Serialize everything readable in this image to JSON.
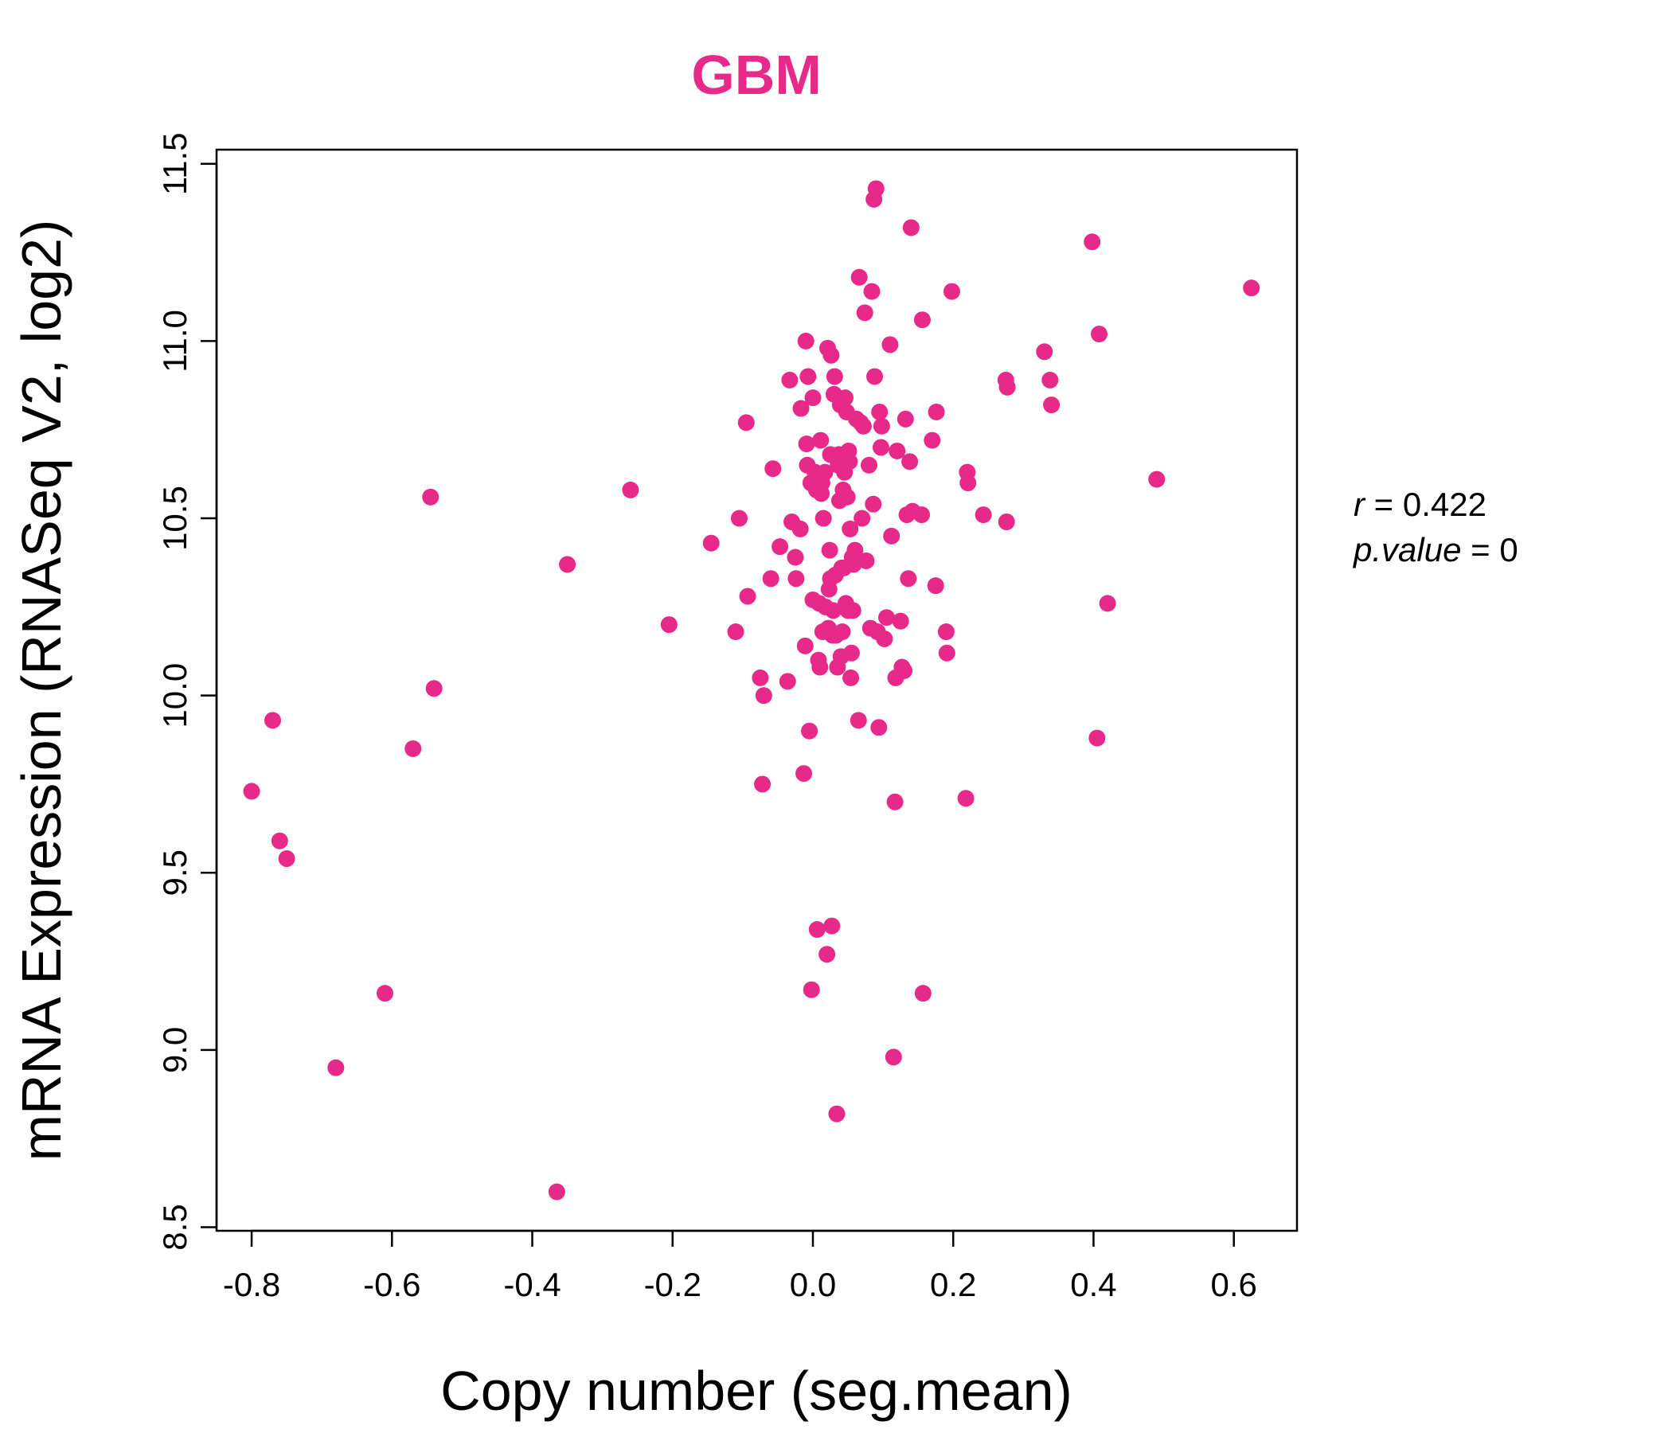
{
  "chart_data": {
    "type": "scatter",
    "title": "GBM",
    "xlabel": "Copy number (seg.mean)",
    "ylabel": "mRNA Expression (RNASeq V2, log2)",
    "xlim": [
      -0.85,
      0.69
    ],
    "ylim": [
      8.49,
      11.54
    ],
    "xticks": [
      -0.8,
      -0.6,
      -0.4,
      -0.2,
      0.0,
      0.2,
      0.4,
      0.6
    ],
    "xtick_labels": [
      "-0.8",
      "-0.6",
      "-0.4",
      "-0.2",
      "0.0",
      "0.2",
      "0.4",
      "0.6"
    ],
    "yticks": [
      8.5,
      9.0,
      9.5,
      10.0,
      10.5,
      11.0,
      11.5
    ],
    "ytick_labels": [
      "8.5",
      "9.0",
      "9.5",
      "10.0",
      "10.5",
      "11.0",
      "11.5"
    ],
    "grid": false,
    "legend": "none",
    "point_color": "#E7298A",
    "title_color": "#E7298A",
    "annotation": {
      "r_label": "r",
      "r_value": "0.422",
      "p_label": "p.value",
      "p_value": "0"
    },
    "points": [
      [
        -0.8,
        9.73
      ],
      [
        -0.77,
        9.93
      ],
      [
        -0.76,
        9.59
      ],
      [
        -0.75,
        9.54
      ],
      [
        -0.68,
        8.95
      ],
      [
        -0.61,
        9.16
      ],
      [
        -0.57,
        9.85
      ],
      [
        -0.545,
        10.56
      ],
      [
        -0.54,
        10.02
      ],
      [
        -0.35,
        10.37
      ],
      [
        -0.365,
        8.6
      ],
      [
        -0.26,
        10.58
      ],
      [
        -0.205,
        10.2
      ],
      [
        -0.145,
        10.43
      ],
      [
        -0.11,
        10.18
      ],
      [
        -0.105,
        10.5
      ],
      [
        -0.095,
        10.77
      ],
      [
        -0.093,
        10.28
      ],
      [
        -0.075,
        10.05
      ],
      [
        -0.07,
        10.0
      ],
      [
        -0.072,
        9.75
      ],
      [
        -0.06,
        10.33
      ],
      [
        -0.057,
        10.64
      ],
      [
        -0.047,
        10.42
      ],
      [
        -0.036,
        10.04
      ],
      [
        -0.033,
        10.89
      ],
      [
        -0.03,
        10.49
      ],
      [
        -0.025,
        10.39
      ],
      [
        -0.024,
        10.33
      ],
      [
        -0.018,
        10.47
      ],
      [
        -0.017,
        10.81
      ],
      [
        -0.013,
        9.78
      ],
      [
        -0.011,
        10.14
      ],
      [
        -0.01,
        11.0
      ],
      [
        -0.009,
        10.71
      ],
      [
        -0.008,
        10.65
      ],
      [
        -0.007,
        10.9
      ],
      [
        -0.005,
        9.9
      ],
      [
        -0.003,
        10.6
      ],
      [
        0.0,
        10.84
      ],
      [
        -0.002,
        9.17
      ],
      [
        0.0,
        10.27
      ],
      [
        0.003,
        10.63
      ],
      [
        0.005,
        10.58
      ],
      [
        0.006,
        9.34
      ],
      [
        0.008,
        10.1
      ],
      [
        0.009,
        10.26
      ],
      [
        0.01,
        10.08
      ],
      [
        0.011,
        10.72
      ],
      [
        0.012,
        10.57
      ],
      [
        0.013,
        10.6
      ],
      [
        0.014,
        10.18
      ],
      [
        0.015,
        10.5
      ],
      [
        0.017,
        10.63
      ],
      [
        0.018,
        10.25
      ],
      [
        0.02,
        9.27
      ],
      [
        0.021,
        10.98
      ],
      [
        0.022,
        10.19
      ],
      [
        0.023,
        10.3
      ],
      [
        0.024,
        10.41
      ],
      [
        0.025,
        10.68
      ],
      [
        0.025,
        10.33
      ],
      [
        0.026,
        10.96
      ],
      [
        0.027,
        9.35
      ],
      [
        0.028,
        10.17
      ],
      [
        0.029,
        10.24
      ],
      [
        0.03,
        10.85
      ],
      [
        0.031,
        10.9
      ],
      [
        0.032,
        10.34
      ],
      [
        0.033,
        10.17
      ],
      [
        0.034,
        8.82
      ],
      [
        0.035,
        10.08
      ],
      [
        0.036,
        10.65
      ],
      [
        0.037,
        10.68
      ],
      [
        0.038,
        10.55
      ],
      [
        0.039,
        10.82
      ],
      [
        0.04,
        10.11
      ],
      [
        0.041,
        10.36
      ],
      [
        0.042,
        10.18
      ],
      [
        0.043,
        10.58
      ],
      [
        0.044,
        10.36
      ],
      [
        0.045,
        10.63
      ],
      [
        0.046,
        10.84
      ],
      [
        0.047,
        10.26
      ],
      [
        0.048,
        10.8
      ],
      [
        0.049,
        10.56
      ],
      [
        0.05,
        10.24
      ],
      [
        0.051,
        10.69
      ],
      [
        0.052,
        10.66
      ],
      [
        0.053,
        10.47
      ],
      [
        0.054,
        10.05
      ],
      [
        0.055,
        10.12
      ],
      [
        0.056,
        10.39
      ],
      [
        0.057,
        10.24
      ],
      [
        0.058,
        10.37
      ],
      [
        0.06,
        10.41
      ],
      [
        0.062,
        10.78
      ],
      [
        0.065,
        9.93
      ],
      [
        0.066,
        11.18
      ],
      [
        0.068,
        10.77
      ],
      [
        0.07,
        10.5
      ],
      [
        0.072,
        10.76
      ],
      [
        0.074,
        11.08
      ],
      [
        0.076,
        10.38
      ],
      [
        0.08,
        10.65
      ],
      [
        0.082,
        10.19
      ],
      [
        0.084,
        11.14
      ],
      [
        0.086,
        10.54
      ],
      [
        0.087,
        11.4
      ],
      [
        0.088,
        10.9
      ],
      [
        0.09,
        11.43
      ],
      [
        0.092,
        10.18
      ],
      [
        0.094,
        9.91
      ],
      [
        0.095,
        10.8
      ],
      [
        0.097,
        10.7
      ],
      [
        0.098,
        10.76
      ],
      [
        0.102,
        10.16
      ],
      [
        0.105,
        10.22
      ],
      [
        0.11,
        10.99
      ],
      [
        0.112,
        10.45
      ],
      [
        0.115,
        8.98
      ],
      [
        0.117,
        9.7
      ],
      [
        0.118,
        10.05
      ],
      [
        0.12,
        10.69
      ],
      [
        0.125,
        10.21
      ],
      [
        0.127,
        10.08
      ],
      [
        0.13,
        10.07
      ],
      [
        0.132,
        10.78
      ],
      [
        0.134,
        10.51
      ],
      [
        0.136,
        10.33
      ],
      [
        0.138,
        10.66
      ],
      [
        0.14,
        11.32
      ],
      [
        0.142,
        10.52
      ],
      [
        0.155,
        10.51
      ],
      [
        0.156,
        11.06
      ],
      [
        0.157,
        9.16
      ],
      [
        0.17,
        10.72
      ],
      [
        0.175,
        10.31
      ],
      [
        0.176,
        10.8
      ],
      [
        0.19,
        10.18
      ],
      [
        0.191,
        10.12
      ],
      [
        0.198,
        11.14
      ],
      [
        0.218,
        9.71
      ],
      [
        0.22,
        10.63
      ],
      [
        0.221,
        10.6
      ],
      [
        0.243,
        10.51
      ],
      [
        0.275,
        10.89
      ],
      [
        0.276,
        10.49
      ],
      [
        0.277,
        10.87
      ],
      [
        0.33,
        10.97
      ],
      [
        0.338,
        10.89
      ],
      [
        0.34,
        10.82
      ],
      [
        0.398,
        11.28
      ],
      [
        0.405,
        9.88
      ],
      [
        0.408,
        11.02
      ],
      [
        0.42,
        10.26
      ],
      [
        0.49,
        10.61
      ],
      [
        0.625,
        11.15
      ]
    ]
  }
}
